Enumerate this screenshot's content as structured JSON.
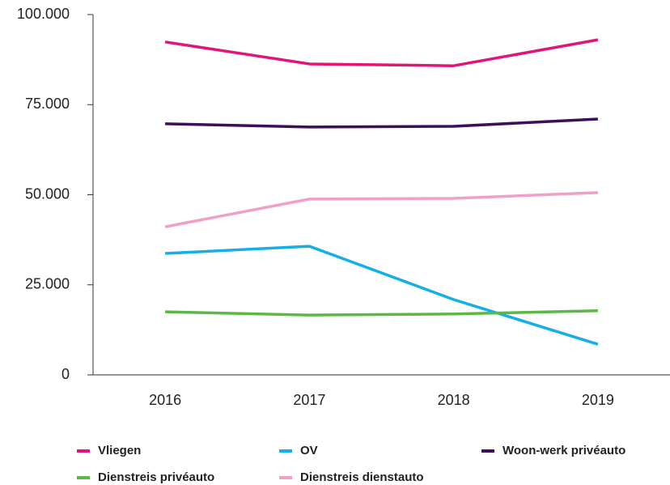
{
  "chart_data": {
    "type": "line",
    "categories": [
      "2016",
      "2017",
      "2018",
      "2019"
    ],
    "series": [
      {
        "name": "Vliegen",
        "color": "#e0157a",
        "values": [
          92400,
          86300,
          85800,
          93000
        ]
      },
      {
        "name": "OV",
        "color": "#16aee6",
        "values": [
          33700,
          35700,
          20900,
          8500
        ]
      },
      {
        "name": "Woon-werk privéauto",
        "color": "#3b0f5a",
        "values": [
          69700,
          68800,
          69000,
          71000
        ]
      },
      {
        "name": "Dienstreis privéauto",
        "color": "#5cb846",
        "values": [
          17500,
          16600,
          16900,
          17800
        ]
      },
      {
        "name": "Dienstreis dienstauto",
        "color": "#f0a0c8",
        "values": [
          41100,
          48800,
          49000,
          50600
        ]
      }
    ],
    "ylim": [
      0,
      100000
    ],
    "yticks": [
      0,
      {
        "value": 25000,
        "label": "25.000"
      },
      {
        "value": 50000,
        "label": "50.000"
      },
      {
        "value": 75000,
        "label": "75.000"
      },
      {
        "value": 100000,
        "label": "100.000"
      }
    ],
    "legend": "bottom"
  }
}
